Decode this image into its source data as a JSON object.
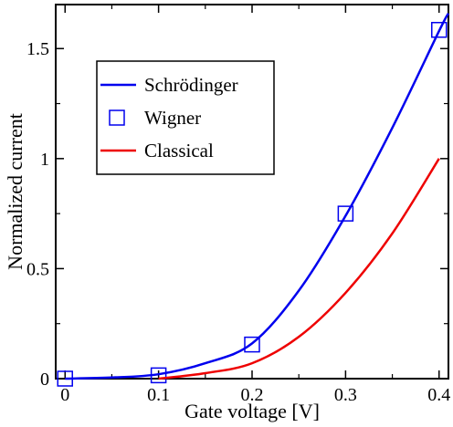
{
  "chart_data": {
    "type": "line",
    "xlabel": "Gate voltage [V]",
    "ylabel": "Normalized current",
    "xlim": [
      -0.01,
      0.41
    ],
    "ylim": [
      0,
      1.7
    ],
    "x_ticks": [
      0,
      0.1,
      0.2,
      0.3,
      0.4
    ],
    "x_tick_labels": [
      "0",
      "0.1",
      "0.2",
      "0.3",
      "0.4"
    ],
    "y_ticks": [
      0,
      0.5,
      1,
      1.5
    ],
    "y_tick_labels": [
      "0",
      "0.5",
      "1",
      "1.5"
    ],
    "grid": false,
    "legend_position": "upper-left",
    "series": [
      {
        "name": "Schrödinger",
        "style": "line",
        "color": "#0000ee",
        "x": [
          0,
          0.05,
          0.1,
          0.15,
          0.2,
          0.25,
          0.3,
          0.35,
          0.4,
          0.41
        ],
        "y": [
          0,
          0.005,
          0.02,
          0.07,
          0.16,
          0.4,
          0.74,
          1.14,
          1.58,
          1.66
        ]
      },
      {
        "name": "Wigner",
        "style": "marker",
        "marker": "square",
        "color": "#0000ee",
        "x": [
          0,
          0.1,
          0.2,
          0.3,
          0.4
        ],
        "y": [
          0,
          0.015,
          0.155,
          0.75,
          1.585
        ]
      },
      {
        "name": "Classical",
        "style": "line",
        "color": "#ee0000",
        "x": [
          0.1,
          0.15,
          0.2,
          0.25,
          0.3,
          0.35,
          0.4
        ],
        "y": [
          0,
          0.025,
          0.07,
          0.19,
          0.39,
          0.66,
          1.0
        ]
      }
    ]
  }
}
